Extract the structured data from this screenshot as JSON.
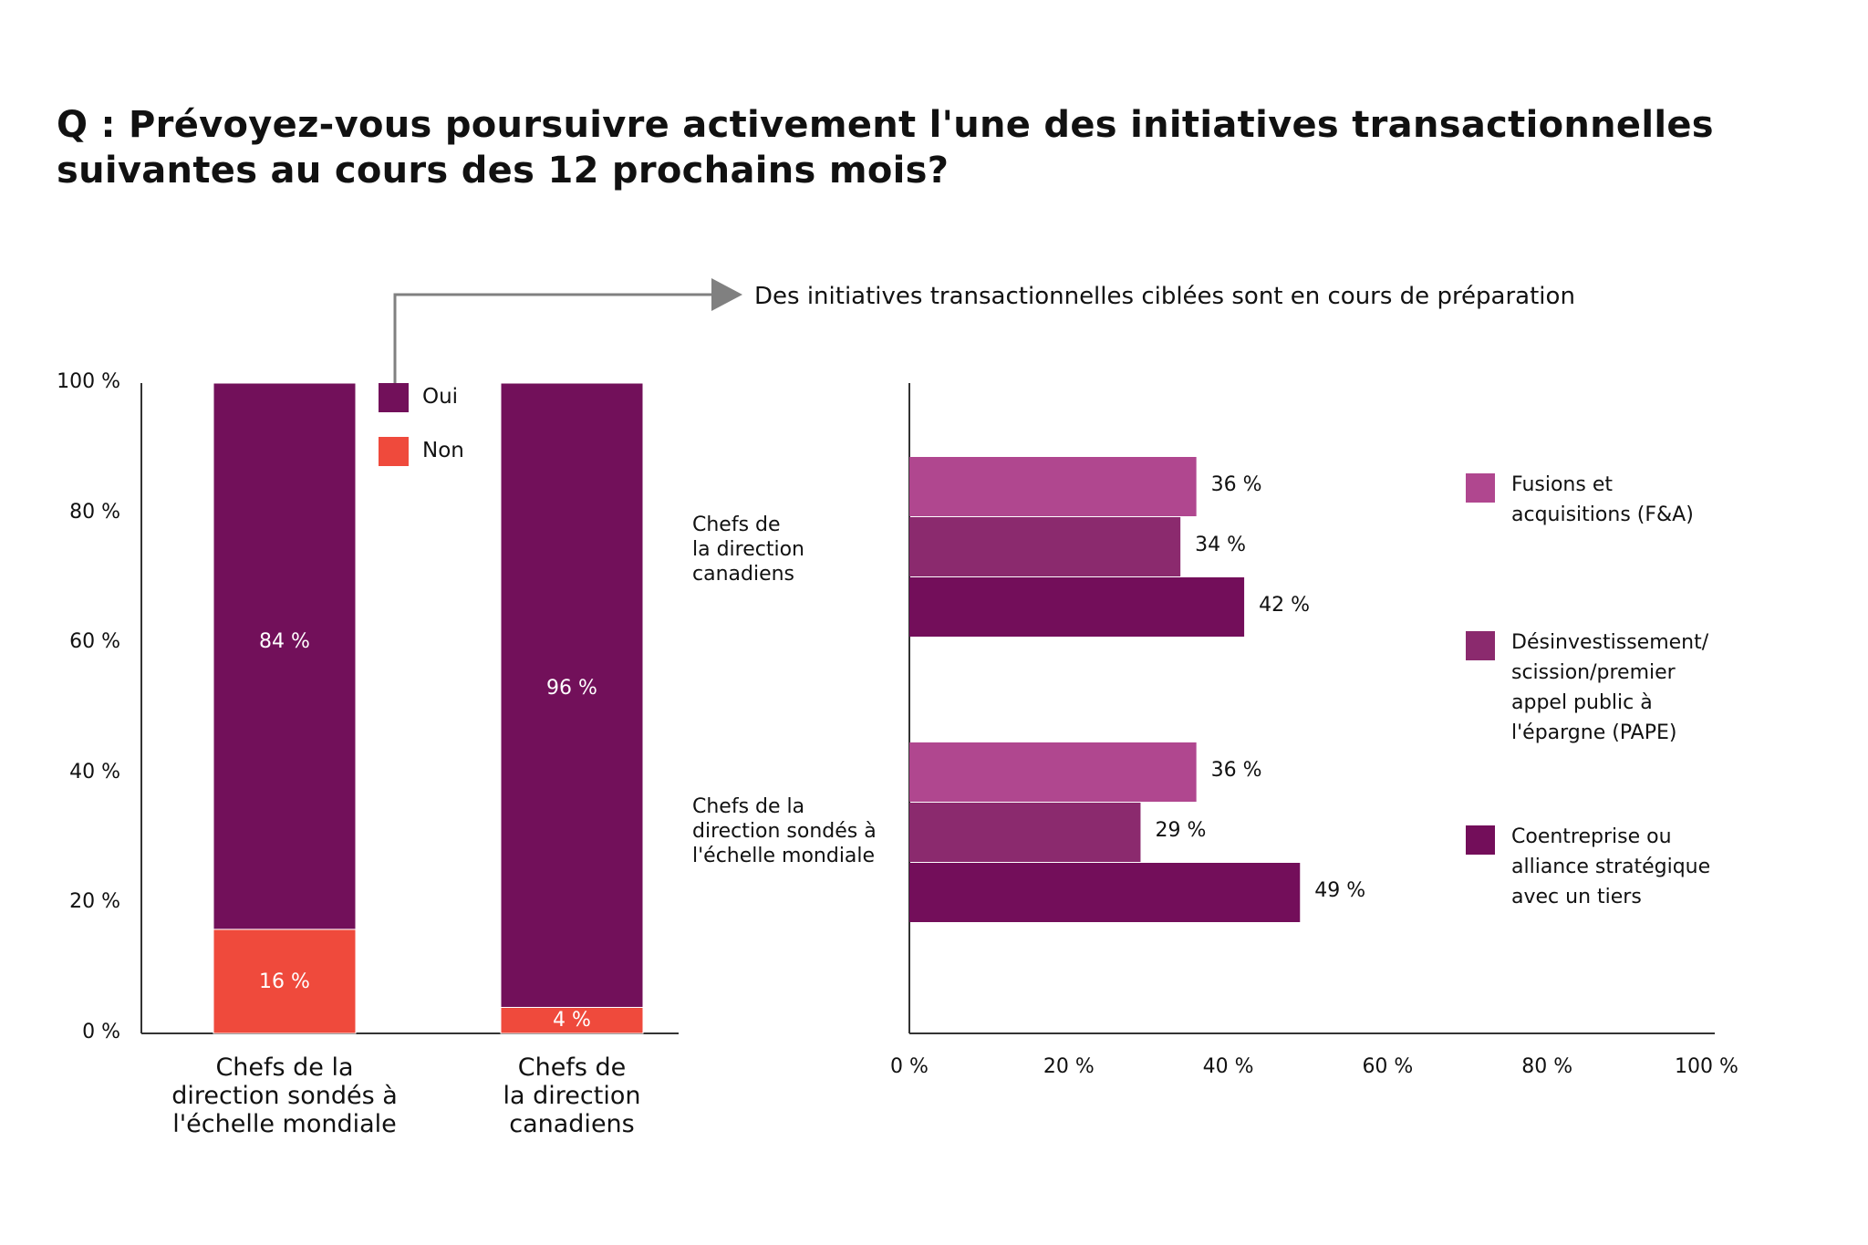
{
  "title": [
    "Q : Prévoyez-vous poursuivre activement l'une des initiatives transactionnelles",
    "suivantes au cours des 12 prochains mois?"
  ],
  "annotation": "Des initiatives transactionnelles ciblées sont en cours de préparation",
  "colors": {
    "oui": "#72105a",
    "non": "#ef4a3c",
    "fa": "#b0478f",
    "desinv": "#8b2a6e",
    "coent": "#730e5a",
    "axis": "#333333",
    "arrow": "#808080"
  },
  "chart_data": [
    {
      "type": "bar",
      "stacked": true,
      "ylim": [
        0,
        100
      ],
      "yticks": [
        "0 %",
        "20 %",
        "40 %",
        "60 %",
        "80 %",
        "100 %"
      ],
      "categories": [
        [
          "Chefs de la",
          "direction sondés à",
          "l'échelle mondiale"
        ],
        [
          "Chefs de",
          "la direction",
          "canadiens"
        ]
      ],
      "series": [
        {
          "name": "Non",
          "values": [
            16,
            4
          ],
          "labels": [
            "16 %",
            "4 %"
          ]
        },
        {
          "name": "Oui",
          "values": [
            84,
            96
          ],
          "labels": [
            "84 %",
            "96 %"
          ]
        }
      ],
      "legend": [
        "Oui",
        "Non"
      ],
      "legend_placement": "top-center"
    },
    {
      "type": "bar",
      "orientation": "horizontal",
      "xlim": [
        0,
        100
      ],
      "xticks": [
        "0 %",
        "20 %",
        "40 %",
        "60 %",
        "80 %",
        "100 %"
      ],
      "groups": [
        [
          "Chefs de",
          "la direction",
          "canadiens"
        ],
        [
          "Chefs de la",
          "direction sondés à",
          "l'échelle mondiale"
        ]
      ],
      "series": [
        {
          "name": [
            "Fusions et",
            "acquisitions (F&A)"
          ],
          "values": [
            36,
            36
          ],
          "labels": [
            "36 %",
            "36 %"
          ]
        },
        {
          "name": [
            "Désinvestissement/",
            "scission/premier",
            "appel public à",
            "l'épargne (PAPE)"
          ],
          "values": [
            34,
            29
          ],
          "labels": [
            "34 %",
            "29 %"
          ]
        },
        {
          "name": [
            "Coentreprise ou",
            "alliance stratégique",
            "avec un tiers"
          ],
          "values": [
            42,
            49
          ],
          "labels": [
            "42 %",
            "49 %"
          ]
        }
      ],
      "legend_placement": "right"
    }
  ]
}
